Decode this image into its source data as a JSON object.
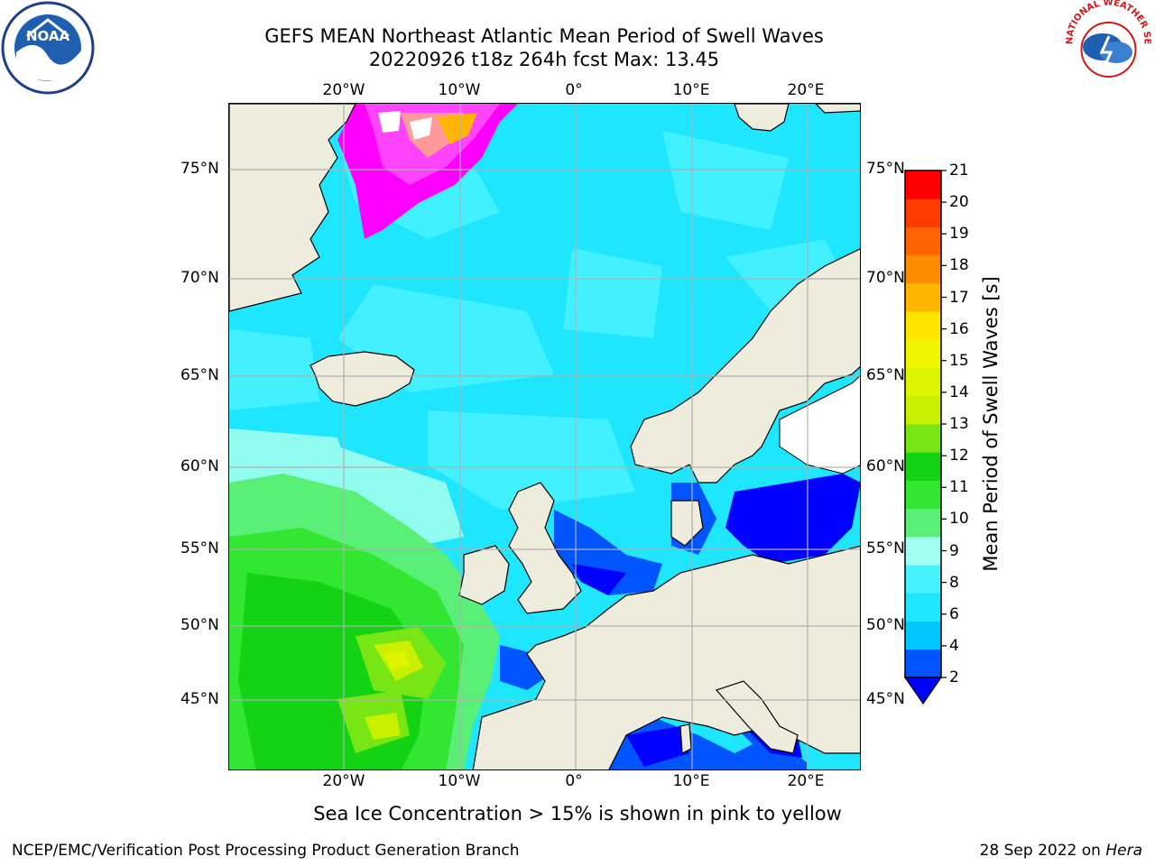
{
  "header": {
    "title_line1": "GEFS MEAN Northeast Atlantic Mean Period of Swell Waves",
    "title_line2": "20220926 t18z 264h fcst   Max: 13.45"
  },
  "logos": {
    "left": {
      "icon": "noaa-logo",
      "text": "NOAA"
    },
    "right": {
      "icon": "nws-logo",
      "text": "NATIONAL WEATHER SERVICE"
    }
  },
  "map": {
    "longitude_labels": [
      "20°W",
      "10°W",
      "0°",
      "10°E",
      "20°E"
    ],
    "latitude_labels": [
      "75°N",
      "70°N",
      "65°N",
      "60°N",
      "55°N",
      "50°N",
      "45°N"
    ],
    "land_color": "#eeecdc",
    "grid_color": "#b0b0b0"
  },
  "colorbar": {
    "label": "Mean Period of Swell Waves [s]",
    "tick_labels": [
      "21",
      "20",
      "19",
      "18",
      "17",
      "16",
      "15",
      "14",
      "13",
      "12",
      "11",
      "10",
      "9",
      "8",
      "6",
      "4",
      "2"
    ],
    "colors_bottom_to_top": [
      "#0055ff",
      "#00c8ff",
      "#1ee6ff",
      "#46f2ff",
      "#a0fff0",
      "#5af078",
      "#32e632",
      "#14d214",
      "#78e614",
      "#c8f000",
      "#dcf500",
      "#f0f500",
      "#ffe600",
      "#ffb400",
      "#ff8c00",
      "#ff6400",
      "#ff3c00",
      "#ff0000"
    ],
    "under_color": "#0000ff"
  },
  "notes": {
    "sea_ice": "Sea Ice Concentration > 15% is shown in pink to yellow"
  },
  "footer": {
    "left": "NCEP/EMC/Verification Post Processing Product Generation Branch",
    "right_date": "28 Sep 2022 on",
    "right_host": "Hera"
  }
}
